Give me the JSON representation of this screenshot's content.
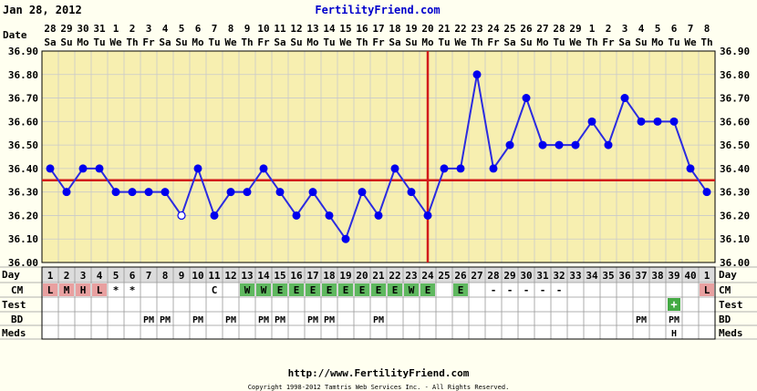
{
  "header": {
    "date": "Jan 28, 2012",
    "site": "FertilityFriend.com"
  },
  "footer": {
    "url": "http://www.FertilityFriend.com",
    "copyright": "Copyright 1998-2012 Tamtris Web Services Inc. - All Rights Reserved."
  },
  "row_labels": {
    "date": "Date",
    "day": "Day",
    "cm": "CM",
    "test": "Test",
    "bd": "BD",
    "meds": "Meds"
  },
  "colors": {
    "background": "#FFFFF0",
    "plot_bg": "#F7EFB0",
    "grid": "#C9C9C9",
    "line": "#2B2BE0",
    "point": "#0000EE",
    "coverline": "#D21A1A",
    "cm_red": "#E8A0A0",
    "cm_green": "#5FB85F",
    "test_pos": "#44AA44",
    "day_cycle": "#DCDCDC",
    "title": "#0000CC"
  },
  "chart_data": {
    "type": "line",
    "title": "",
    "y_unit": "°C",
    "ylim": [
      36.0,
      36.9
    ],
    "yticks": [
      "36.00",
      "36.10",
      "36.20",
      "36.30",
      "36.40",
      "36.50",
      "36.60",
      "36.70",
      "36.80",
      "36.90"
    ],
    "coverline": 36.35,
    "ovulation_day_index": 23,
    "dates": [
      "28",
      "29",
      "30",
      "31",
      "1",
      "2",
      "3",
      "4",
      "5",
      "6",
      "7",
      "8",
      "9",
      "10",
      "11",
      "12",
      "13",
      "14",
      "15",
      "16",
      "17",
      "18",
      "19",
      "20",
      "21",
      "22",
      "23",
      "24",
      "25",
      "26",
      "27",
      "28",
      "29",
      "1",
      "2",
      "3",
      "4",
      "5",
      "6",
      "7",
      "8"
    ],
    "weekdays": [
      "Sa",
      "Su",
      "Mo",
      "Tu",
      "We",
      "Th",
      "Fr",
      "Sa",
      "Su",
      "Mo",
      "Tu",
      "We",
      "Th",
      "Fr",
      "Sa",
      "Su",
      "Mo",
      "Tu",
      "We",
      "Th",
      "Fr",
      "Sa",
      "Su",
      "Mo",
      "Tu",
      "We",
      "Th",
      "Fr",
      "Sa",
      "Su",
      "Mo",
      "Tu",
      "We",
      "Th",
      "Fr",
      "Sa",
      "Su",
      "Mo",
      "Tu",
      "We",
      "Th"
    ],
    "cycle_days": [
      "1",
      "2",
      "3",
      "4",
      "5",
      "6",
      "7",
      "8",
      "9",
      "10",
      "11",
      "12",
      "13",
      "14",
      "15",
      "16",
      "17",
      "18",
      "19",
      "20",
      "21",
      "22",
      "23",
      "24",
      "25",
      "26",
      "27",
      "28",
      "29",
      "30",
      "31",
      "32",
      "33",
      "34",
      "35",
      "36",
      "37",
      "38",
      "39",
      "40",
      "1"
    ],
    "series": [
      {
        "values": [
          36.4,
          36.3,
          36.4,
          36.4,
          36.3,
          36.3,
          36.3,
          36.3,
          36.2,
          36.4,
          36.2,
          36.3,
          36.3,
          36.4,
          36.3,
          36.2,
          36.3,
          36.2,
          36.1,
          36.3,
          36.2,
          36.4,
          36.3,
          36.2,
          36.4,
          36.4,
          36.8,
          36.4,
          36.5,
          36.7,
          36.5,
          36.5,
          36.5,
          36.6,
          36.5,
          36.7,
          36.6,
          36.6,
          36.6,
          36.4,
          36.3
        ],
        "open_points": [
          8
        ]
      }
    ],
    "cm": [
      "L",
      "M",
      "H",
      "L",
      "*",
      "*",
      "",
      "",
      "",
      "",
      "C",
      "",
      "W",
      "W",
      "E",
      "E",
      "E",
      "E",
      "E",
      "E",
      "E",
      "E",
      "W",
      "E",
      "",
      "E",
      "",
      "-",
      "-",
      "-",
      "-",
      "-",
      "",
      "",
      "",
      "",
      "",
      "",
      "",
      "",
      "L"
    ],
    "cm_red_days": [
      0,
      1,
      2,
      3,
      40
    ],
    "cm_green_days": [
      12,
      13,
      14,
      15,
      16,
      17,
      18,
      19,
      20,
      21,
      22,
      23,
      25
    ],
    "test": [
      "",
      "",
      "",
      "",
      "",
      "",
      "",
      "",
      "",
      "",
      "",
      "",
      "",
      "",
      "",
      "",
      "",
      "",
      "",
      "",
      "",
      "",
      "",
      "",
      "",
      "",
      "",
      "",
      "",
      "",
      "",
      "",
      "",
      "",
      "",
      "",
      "",
      "",
      "+",
      "",
      ""
    ],
    "bd": [
      "",
      "",
      "",
      "",
      "",
      "",
      "PM",
      "PM",
      "",
      "PM",
      "",
      "PM",
      "",
      "PM",
      "PM",
      "",
      "PM",
      "PM",
      "",
      "",
      "PM",
      "",
      "",
      "",
      "",
      "",
      "",
      "",
      "",
      "",
      "",
      "",
      "",
      "",
      "",
      "",
      "PM",
      "",
      "PM",
      "",
      ""
    ],
    "meds": [
      "",
      "",
      "",
      "",
      "",
      "",
      "",
      "",
      "",
      "",
      "",
      "",
      "",
      "",
      "",
      "",
      "",
      "",
      "",
      "",
      "",
      "",
      "",
      "",
      "",
      "",
      "",
      "",
      "",
      "",
      "",
      "",
      "",
      "",
      "",
      "",
      "",
      "",
      "H",
      "",
      ""
    ]
  }
}
